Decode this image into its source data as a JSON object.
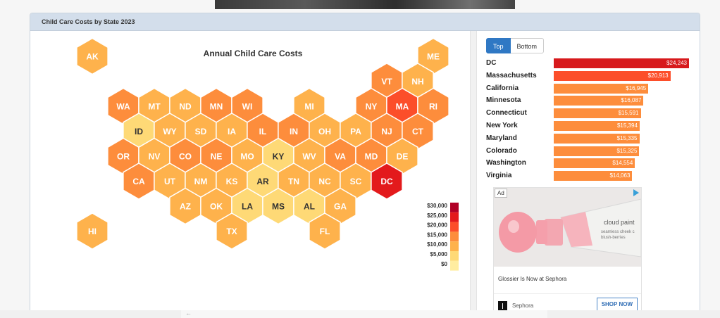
{
  "panel": {
    "title": "Child Care Costs by State 2023"
  },
  "tabs": {
    "top_label": "Top",
    "bottom_label": "Bottom"
  },
  "colors": {
    "scale": [
      "#ffffcc",
      "#ffeda0",
      "#fed976",
      "#feb24c",
      "#fd8d3c",
      "#fc4e2a",
      "#e31a1c",
      "#b10026"
    ],
    "top_bar_first": "#d7191c"
  },
  "chart_data": [
    {
      "type": "hexbin-map",
      "title": "Annual Child Care Costs",
      "legend": {
        "placement": "bottom-right",
        "labels": [
          "$30,000",
          "$25,000",
          "$20,000",
          "$15,000",
          "$10,000",
          "$5,000",
          "$0"
        ],
        "thresholds": [
          30000,
          25000,
          20000,
          15000,
          10000,
          5000,
          0
        ]
      },
      "states": [
        {
          "code": "AK",
          "row": 0,
          "col": 0,
          "value": 12600
        },
        {
          "code": "ME",
          "row": 0,
          "col": 11,
          "value": 11300
        },
        {
          "code": "VT",
          "row": 1,
          "col": 9.5,
          "value": 13900
        },
        {
          "code": "NH",
          "row": 1,
          "col": 10.5,
          "value": 12800
        },
        {
          "code": "WA",
          "row": 2,
          "col": 1,
          "value": 14554
        },
        {
          "code": "MT",
          "row": 2,
          "col": 2,
          "value": 10900
        },
        {
          "code": "ND",
          "row": 2,
          "col": 3,
          "value": 9600
        },
        {
          "code": "MN",
          "row": 2,
          "col": 4,
          "value": 16087
        },
        {
          "code": "WI",
          "row": 2,
          "col": 5,
          "value": 13500
        },
        {
          "code": "MI",
          "row": 2,
          "col": 7,
          "value": 10800
        },
        {
          "code": "NY",
          "row": 2,
          "col": 9,
          "value": 15394
        },
        {
          "code": "MA",
          "row": 2,
          "col": 10,
          "value": 20913
        },
        {
          "code": "RI",
          "row": 2,
          "col": 11,
          "value": 14200
        },
        {
          "code": "ID",
          "row": 3,
          "col": 1.5,
          "value": 8500
        },
        {
          "code": "WY",
          "row": 3,
          "col": 2.5,
          "value": 10300
        },
        {
          "code": "SD",
          "row": 3,
          "col": 3.5,
          "value": 8900
        },
        {
          "code": "IA",
          "row": 3,
          "col": 4.5,
          "value": 10200
        },
        {
          "code": "IL",
          "row": 3,
          "col": 5.5,
          "value": 14500
        },
        {
          "code": "IN",
          "row": 3,
          "col": 6.5,
          "value": 13000
        },
        {
          "code": "OH",
          "row": 3,
          "col": 7.5,
          "value": 10000
        },
        {
          "code": "PA",
          "row": 3,
          "col": 8.5,
          "value": 12000
        },
        {
          "code": "NJ",
          "row": 3,
          "col": 9.5,
          "value": 13300
        },
        {
          "code": "CT",
          "row": 3,
          "col": 10.5,
          "value": 15591
        },
        {
          "code": "OR",
          "row": 4,
          "col": 1,
          "value": 13800
        },
        {
          "code": "NV",
          "row": 4,
          "col": 2,
          "value": 11200
        },
        {
          "code": "CO",
          "row": 4,
          "col": 3,
          "value": 15325
        },
        {
          "code": "NE",
          "row": 4,
          "col": 4,
          "value": 13000
        },
        {
          "code": "MO",
          "row": 4,
          "col": 5,
          "value": 10500
        },
        {
          "code": "KY",
          "row": 4,
          "col": 6,
          "value": 8200
        },
        {
          "code": "WV",
          "row": 4,
          "col": 7,
          "value": 9500
        },
        {
          "code": "VA",
          "row": 4,
          "col": 8,
          "value": 14063
        },
        {
          "code": "MD",
          "row": 4,
          "col": 9,
          "value": 15335
        },
        {
          "code": "DE",
          "row": 4,
          "col": 10,
          "value": 11000
        },
        {
          "code": "CA",
          "row": 5,
          "col": 1.5,
          "value": 16945
        },
        {
          "code": "UT",
          "row": 5,
          "col": 2.5,
          "value": 10400
        },
        {
          "code": "NM",
          "row": 5,
          "col": 3.5,
          "value": 9300
        },
        {
          "code": "KS",
          "row": 5,
          "col": 4.5,
          "value": 11600
        },
        {
          "code": "AR",
          "row": 5,
          "col": 5.5,
          "value": 7800
        },
        {
          "code": "TN",
          "row": 5,
          "col": 6.5,
          "value": 9200
        },
        {
          "code": "NC",
          "row": 5,
          "col": 7.5,
          "value": 9900
        },
        {
          "code": "SC",
          "row": 5,
          "col": 8.5,
          "value": 8800
        },
        {
          "code": "DC",
          "row": 5,
          "col": 9.5,
          "value": 24243
        },
        {
          "code": "AZ",
          "row": 6,
          "col": 3,
          "value": 11500
        },
        {
          "code": "OK",
          "row": 6,
          "col": 4,
          "value": 8700
        },
        {
          "code": "LA",
          "row": 6,
          "col": 5,
          "value": 8100
        },
        {
          "code": "MS",
          "row": 6,
          "col": 6,
          "value": 6000
        },
        {
          "code": "AL",
          "row": 6,
          "col": 7,
          "value": 7900
        },
        {
          "code": "GA",
          "row": 6,
          "col": 8,
          "value": 9000
        },
        {
          "code": "HI",
          "row": 7,
          "col": 0,
          "value": 12000
        },
        {
          "code": "TX",
          "row": 7,
          "col": 4.5,
          "value": 10300
        },
        {
          "code": "FL",
          "row": 7,
          "col": 7.5,
          "value": 10000
        }
      ]
    },
    {
      "type": "bar",
      "orientation": "horizontal",
      "categories": [
        "DC",
        "Massachusetts",
        "California",
        "Minnesota",
        "Connecticut",
        "New York",
        "Maryland",
        "Colorado",
        "Washington",
        "Virginia"
      ],
      "values": [
        24243,
        20913,
        16945,
        16087,
        15591,
        15394,
        15335,
        15325,
        14554,
        14063
      ],
      "value_labels": [
        "$24,243",
        "$20,913",
        "$16,945",
        "$16,087",
        "$15,591",
        "$15,394",
        "$15,335",
        "$15,325",
        "$14,554",
        "$14,063"
      ],
      "xlim": [
        0,
        24243
      ]
    }
  ],
  "ad": {
    "badge": "Ad",
    "headline": "Glossier Is Now at Sephora",
    "brand": "Sephora",
    "cta": "SHOP NOW",
    "product_text_1": "cloud paint",
    "product_text_2": "seamless cheek c",
    "product_text_3": "blush-berries"
  }
}
